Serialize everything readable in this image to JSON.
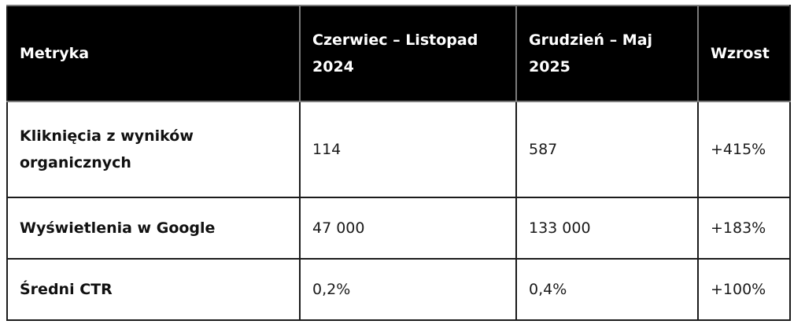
{
  "table": {
    "headers": [
      "Metryka",
      "Czerwiec – Listopad 2024",
      "Grudzień – Maj 2025",
      "Wzrost"
    ],
    "rows": [
      {
        "metric": "Kliknięcia z wyników organicznych",
        "period1": "114",
        "period2": "587",
        "growth": "+415%"
      },
      {
        "metric": "Wyświetlenia w Google",
        "period1": "47 000",
        "period2": "133 000",
        "growth": "+183%"
      },
      {
        "metric": "Średni CTR",
        "period1": "0,2%",
        "period2": "0,4%",
        "growth": "+100%"
      }
    ]
  }
}
